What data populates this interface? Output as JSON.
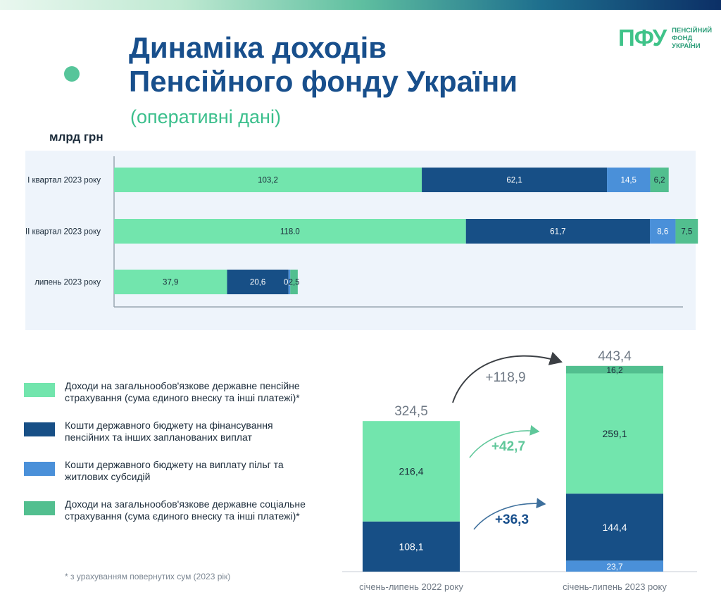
{
  "header": {
    "title_line1": "Динаміка доходів",
    "title_line2": "Пенсійного фонду України",
    "subtitle": "(оперативні дані)",
    "logo_mark": "ПФУ",
    "logo_line1": "ПЕНСІЙНИЙ",
    "logo_line2": "ФОНД",
    "logo_line3": "УКРАЇНИ"
  },
  "colors": {
    "pension_contrib": "#72e5ad",
    "state_budget_pension": "#174f86",
    "state_budget_benefits": "#4a90d9",
    "social_insurance": "#52bf8f",
    "accent_title": "#184f8c",
    "accent_green": "#3bbf8c"
  },
  "legend": [
    {
      "label": "Доходи на загальнообов'язкове державне пенсійне страхування (сума єдиного внеску та інші платежі)*",
      "color": "#72e5ad"
    },
    {
      "label": "Кошти державного бюджету на фінансування пенсійних та інших запланованих виплат",
      "color": "#174f86"
    },
    {
      "label": "Кошти державного бюджету на виплату пільг та житлових субсидій",
      "color": "#4a90d9"
    },
    {
      "label": "Доходи на загальнообов'язкове державне соціальне страхування (сума єдиного внеску та інші платежі)*",
      "color": "#52bf8f"
    }
  ],
  "footnote": "* з урахуванням повернутих сум (2023 рік)",
  "chart_data": [
    {
      "type": "bar",
      "orientation": "horizontal",
      "stacked": true,
      "unit_label": "млрд грн",
      "categories": [
        "I квартал 2023 року",
        "II квартал 2023 року",
        "липень 2023 року"
      ],
      "series": [
        {
          "values": [
            103.2,
            118.0,
            37.9
          ],
          "labels": [
            "103,2",
            "118.0",
            "37,9"
          ],
          "color": "#72e5ad"
        },
        {
          "values": [
            62.1,
            61.7,
            20.6
          ],
          "labels": [
            "62,1",
            "61,7",
            "20,6"
          ],
          "color": "#174f86"
        },
        {
          "values": [
            14.5,
            8.6,
            0.6
          ],
          "labels": [
            "14,5",
            "8,6",
            "0,6"
          ],
          "color": "#4a90d9"
        },
        {
          "values": [
            6.2,
            7.5,
            2.5
          ],
          "labels": [
            "6,2",
            "7,5",
            "2,5"
          ],
          "color": "#52bf8f"
        }
      ]
    },
    {
      "type": "bar",
      "orientation": "vertical",
      "stacked": true,
      "categories": [
        "січень-липень 2022 року",
        "січень-липень 2023 року"
      ],
      "totals": [
        324.5,
        443.4
      ],
      "total_labels": [
        "324,5",
        "443,4"
      ],
      "series": [
        {
          "values": [
            null,
            23.7
          ],
          "labels": [
            "",
            "23,7"
          ],
          "color": "#4a90d9"
        },
        {
          "values": [
            108.1,
            144.4
          ],
          "labels": [
            "108,1",
            "144,4"
          ],
          "color": "#174f86"
        },
        {
          "values": [
            216.4,
            259.1
          ],
          "labels": [
            "216,4",
            "259,1"
          ],
          "color": "#72e5ad"
        },
        {
          "values": [
            null,
            16.2
          ],
          "labels": [
            "",
            "16,2"
          ],
          "color": "#52bf8f"
        }
      ],
      "annotations": [
        {
          "text": "+118,9",
          "refers_to": "total"
        },
        {
          "text": "+42,7",
          "refers_to": "pension_contrib"
        },
        {
          "text": "+36,3",
          "refers_to": "state_budget_pension"
        }
      ]
    }
  ]
}
